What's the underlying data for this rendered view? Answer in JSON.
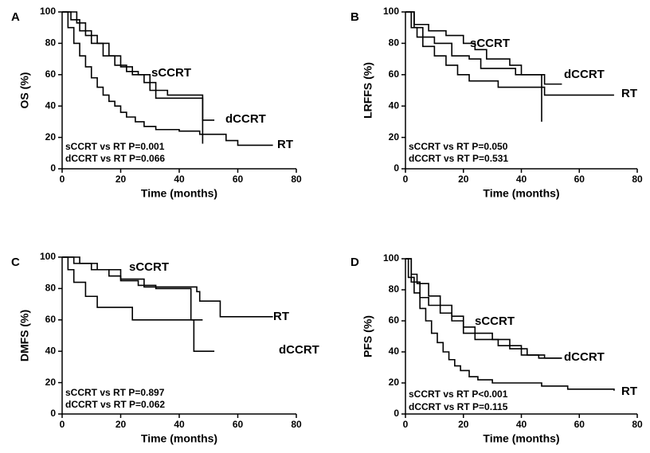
{
  "chart_data": [
    {
      "type": "line",
      "step": true,
      "label": "A",
      "ylabel": "OS (%)",
      "xlabel": "Time (months)",
      "xlim": [
        0,
        80
      ],
      "xticks": [
        0,
        20,
        40,
        60,
        80
      ],
      "ylim": [
        0,
        100
      ],
      "yticks": [
        0,
        20,
        40,
        60,
        80,
        100
      ],
      "annotations": [
        "sCCRT vs RT  P=0.001",
        "dCCRT vs RT  P=0.066"
      ],
      "series": [
        {
          "name": "sCCRT",
          "color": "#000000",
          "x": [
            0,
            3,
            6,
            10,
            14,
            18,
            22,
            26,
            30,
            36,
            48,
            48
          ],
          "values": [
            100,
            95,
            88,
            80,
            72,
            66,
            62,
            60,
            50,
            47,
            46,
            16
          ]
        },
        {
          "name": "dCCRT",
          "color": "#000000",
          "x": [
            0,
            5,
            8,
            12,
            16,
            20,
            24,
            28,
            32,
            47,
            48,
            52
          ],
          "values": [
            100,
            93,
            85,
            80,
            72,
            65,
            60,
            55,
            45,
            45,
            31,
            31
          ]
        },
        {
          "name": "RT",
          "color": "#000000",
          "x": [
            0,
            2,
            4,
            6,
            8,
            10,
            12,
            14,
            16,
            18,
            20,
            22,
            25,
            28,
            32,
            40,
            47,
            56,
            60,
            72
          ],
          "values": [
            100,
            90,
            80,
            72,
            65,
            58,
            52,
            47,
            43,
            40,
            36,
            33,
            30,
            27,
            25,
            24,
            22,
            18,
            15,
            15
          ]
        }
      ]
    },
    {
      "type": "line",
      "step": true,
      "label": "B",
      "ylabel": "LRFFS (%)",
      "xlabel": "Time (months)",
      "xlim": [
        0,
        80
      ],
      "xticks": [
        0,
        20,
        40,
        60,
        80
      ],
      "ylim": [
        0,
        100
      ],
      "yticks": [
        0,
        20,
        40,
        60,
        80,
        100
      ],
      "annotations": [
        "sCCRT vs RT  P=0.050",
        "dCCRT vs RT  P=0.531"
      ],
      "series": [
        {
          "name": "sCCRT",
          "color": "#000000",
          "x": [
            0,
            3,
            8,
            14,
            20,
            24,
            28,
            36,
            40,
            47,
            47
          ],
          "values": [
            100,
            92,
            88,
            85,
            80,
            76,
            70,
            66,
            60,
            60,
            30
          ]
        },
        {
          "name": "dCCRT",
          "color": "#000000",
          "x": [
            0,
            3,
            6,
            10,
            16,
            22,
            26,
            38,
            48,
            54
          ],
          "values": [
            100,
            90,
            84,
            80,
            72,
            70,
            64,
            60,
            54,
            54
          ]
        },
        {
          "name": "RT",
          "color": "#000000",
          "x": [
            0,
            2,
            4,
            6,
            10,
            14,
            18,
            22,
            32,
            48,
            72
          ],
          "values": [
            100,
            90,
            84,
            78,
            72,
            66,
            60,
            56,
            52,
            47,
            47
          ]
        }
      ]
    },
    {
      "type": "line",
      "step": true,
      "label": "C",
      "ylabel": "DMFS (%)",
      "xlabel": "Time (months)",
      "xlim": [
        0,
        80
      ],
      "xticks": [
        0,
        20,
        40,
        60,
        80
      ],
      "ylim": [
        0,
        100
      ],
      "yticks": [
        0,
        20,
        40,
        60,
        80,
        100
      ],
      "annotations": [
        "sCCRT vs RT  P=0.897",
        "dCCRT vs RT  P=0.062"
      ],
      "series": [
        {
          "name": "sCCRT",
          "color": "#000000",
          "x": [
            0,
            4,
            10,
            16,
            20,
            26,
            32,
            44,
            48
          ],
          "values": [
            100,
            96,
            92,
            88,
            85,
            82,
            80,
            60,
            60
          ]
        },
        {
          "name": "dCCRT",
          "color": "#000000",
          "x": [
            0,
            2,
            4,
            8,
            12,
            24,
            45,
            52
          ],
          "values": [
            100,
            92,
            84,
            75,
            68,
            60,
            40,
            40
          ]
        },
        {
          "name": "RT",
          "color": "#000000",
          "x": [
            0,
            6,
            12,
            20,
            28,
            46,
            47,
            54,
            72
          ],
          "values": [
            100,
            96,
            92,
            86,
            81,
            78,
            72,
            62,
            62
          ]
        }
      ]
    },
    {
      "type": "line",
      "step": true,
      "label": "D",
      "ylabel": "PFS (%)",
      "xlabel": "Time (months)",
      "xlim": [
        0,
        80
      ],
      "xticks": [
        0,
        20,
        40,
        60,
        80
      ],
      "ylim": [
        0,
        100
      ],
      "yticks": [
        0,
        20,
        40,
        60,
        80,
        100
      ],
      "annotations": [
        "sCCRT vs RT  P<0.001",
        "dCCRT vs RT  P=0.115"
      ],
      "series": [
        {
          "name": "sCCRT",
          "color": "#000000",
          "x": [
            0,
            2,
            4,
            8,
            12,
            16,
            20,
            24,
            30,
            36,
            42,
            48,
            54
          ],
          "values": [
            100,
            90,
            84,
            76,
            70,
            63,
            56,
            52,
            48,
            42,
            38,
            36,
            36
          ]
        },
        {
          "name": "dCCRT",
          "color": "#000000",
          "x": [
            0,
            2,
            5,
            8,
            12,
            16,
            20,
            24,
            32,
            40,
            46,
            54
          ],
          "values": [
            100,
            85,
            75,
            70,
            65,
            60,
            52,
            48,
            44,
            38,
            36,
            36
          ]
        },
        {
          "name": "RT",
          "color": "#000000",
          "x": [
            0,
            1,
            3,
            5,
            7,
            9,
            11,
            13,
            15,
            17,
            19,
            22,
            25,
            30,
            47,
            56,
            72
          ],
          "values": [
            100,
            88,
            78,
            68,
            60,
            52,
            46,
            40,
            35,
            31,
            28,
            24,
            22,
            20,
            18,
            16,
            15
          ]
        }
      ]
    }
  ]
}
